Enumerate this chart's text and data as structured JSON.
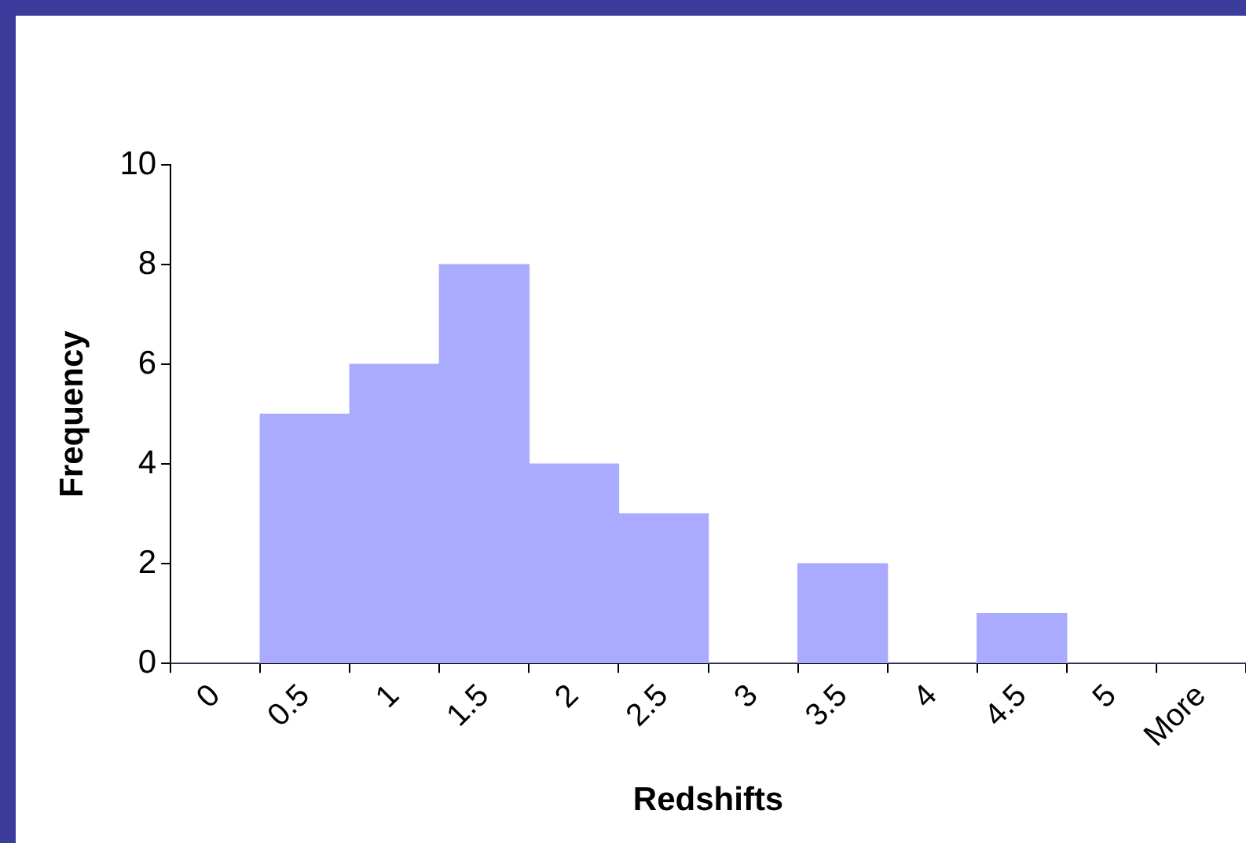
{
  "chart_data": {
    "type": "bar",
    "xlabel": "Redshifts",
    "ylabel": "Frequency",
    "categories": [
      "0",
      "0.5",
      "1",
      "1.5",
      "2",
      "2.5",
      "3",
      "3.5",
      "4",
      "4.5",
      "5",
      "More"
    ],
    "values": [
      0,
      5,
      6,
      8,
      4,
      3,
      0,
      2,
      0,
      1,
      0,
      0
    ],
    "color": "#aaaaff",
    "ylim": [
      0,
      10
    ],
    "yticks": [
      0,
      2,
      4,
      6,
      8,
      10
    ],
    "grid": false,
    "legend": false
  }
}
